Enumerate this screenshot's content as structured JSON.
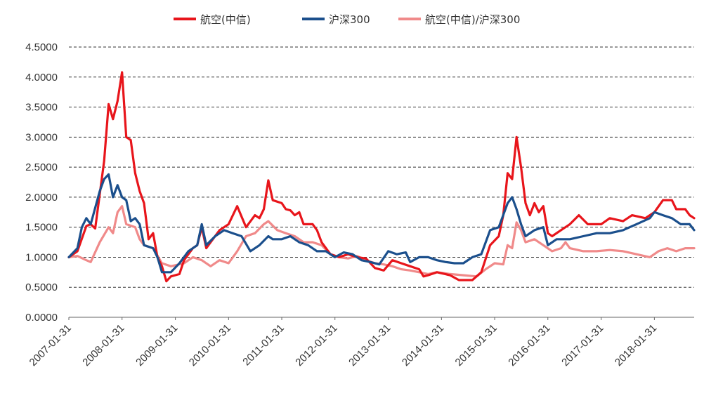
{
  "chart_data": {
    "type": "line",
    "title": "",
    "xlabel": "",
    "ylabel": "",
    "ylim": [
      0,
      4.5
    ],
    "y_ticks": [
      "0.0000",
      "0.5000",
      "1.0000",
      "1.5000",
      "2.0000",
      "2.5000",
      "3.0000",
      "3.5000",
      "4.0000",
      "4.5000"
    ],
    "x_tick_labels": [
      "2007-01-31",
      "2008-01-31",
      "2009-01-31",
      "2010-01-31",
      "2011-01-31",
      "2012-01-31",
      "2013-01-31",
      "2014-01-31",
      "2015-01-31",
      "2016-01-31",
      "2017-01-31",
      "2018-01-31"
    ],
    "x_start": "2007-01-31",
    "x_end": "2018-10-31",
    "grid": true,
    "legend_position": "top",
    "series": [
      {
        "name": "航空(中信)",
        "color": "#e8151b",
        "points": [
          [
            "2007-01-31",
            1.0
          ],
          [
            "2007-03-31",
            1.1
          ],
          [
            "2007-05-31",
            1.52
          ],
          [
            "2007-06-30",
            1.55
          ],
          [
            "2007-07-31",
            1.48
          ],
          [
            "2007-09-30",
            2.6
          ],
          [
            "2007-10-31",
            3.55
          ],
          [
            "2007-11-30",
            3.3
          ],
          [
            "2007-12-31",
            3.6
          ],
          [
            "2008-01-31",
            4.08
          ],
          [
            "2008-02-29",
            3.0
          ],
          [
            "2008-03-31",
            2.95
          ],
          [
            "2008-04-30",
            2.4
          ],
          [
            "2008-05-31",
            2.1
          ],
          [
            "2008-06-30",
            1.9
          ],
          [
            "2008-07-31",
            1.3
          ],
          [
            "2008-08-31",
            1.4
          ],
          [
            "2008-09-30",
            1.0
          ],
          [
            "2008-10-31",
            0.85
          ],
          [
            "2008-11-30",
            0.6
          ],
          [
            "2008-12-31",
            0.68
          ],
          [
            "2009-02-28",
            0.72
          ],
          [
            "2009-03-31",
            0.95
          ],
          [
            "2009-04-30",
            1.05
          ],
          [
            "2009-05-31",
            1.15
          ],
          [
            "2009-06-30",
            1.2
          ],
          [
            "2009-07-31",
            1.5
          ],
          [
            "2009-08-31",
            1.15
          ],
          [
            "2009-09-30",
            1.25
          ],
          [
            "2009-11-30",
            1.45
          ],
          [
            "2010-01-31",
            1.55
          ],
          [
            "2010-03-31",
            1.85
          ],
          [
            "2010-05-31",
            1.5
          ],
          [
            "2010-07-31",
            1.7
          ],
          [
            "2010-08-31",
            1.65
          ],
          [
            "2010-09-30",
            1.8
          ],
          [
            "2010-10-31",
            2.28
          ],
          [
            "2010-11-30",
            1.95
          ],
          [
            "2011-01-31",
            1.9
          ],
          [
            "2011-02-28",
            1.8
          ],
          [
            "2011-03-31",
            1.78
          ],
          [
            "2011-04-30",
            1.7
          ],
          [
            "2011-05-31",
            1.75
          ],
          [
            "2011-06-30",
            1.55
          ],
          [
            "2011-08-31",
            1.55
          ],
          [
            "2011-09-30",
            1.45
          ],
          [
            "2011-10-31",
            1.25
          ],
          [
            "2011-12-31",
            1.05
          ],
          [
            "2012-02-29",
            1.0
          ],
          [
            "2012-04-30",
            1.05
          ],
          [
            "2012-06-30",
            1.0
          ],
          [
            "2012-08-31",
            0.98
          ],
          [
            "2012-10-31",
            0.82
          ],
          [
            "2012-12-31",
            0.78
          ],
          [
            "2013-02-28",
            0.95
          ],
          [
            "2013-04-30",
            0.9
          ],
          [
            "2013-06-30",
            0.85
          ],
          [
            "2013-08-31",
            0.8
          ],
          [
            "2013-09-30",
            0.68
          ],
          [
            "2013-10-31",
            0.7
          ],
          [
            "2013-12-31",
            0.75
          ],
          [
            "2014-03-31",
            0.7
          ],
          [
            "2014-05-31",
            0.62
          ],
          [
            "2014-08-31",
            0.62
          ],
          [
            "2014-10-31",
            0.75
          ],
          [
            "2014-12-31",
            1.2
          ],
          [
            "2015-02-28",
            1.35
          ],
          [
            "2015-03-31",
            1.7
          ],
          [
            "2015-04-30",
            2.4
          ],
          [
            "2015-05-31",
            2.3
          ],
          [
            "2015-06-30",
            3.0
          ],
          [
            "2015-07-31",
            2.5
          ],
          [
            "2015-08-31",
            1.9
          ],
          [
            "2015-09-30",
            1.7
          ],
          [
            "2015-10-31",
            1.9
          ],
          [
            "2015-11-30",
            1.75
          ],
          [
            "2015-12-31",
            1.85
          ],
          [
            "2016-01-31",
            1.4
          ],
          [
            "2016-02-29",
            1.35
          ],
          [
            "2016-04-30",
            1.45
          ],
          [
            "2016-06-30",
            1.55
          ],
          [
            "2016-08-31",
            1.7
          ],
          [
            "2016-10-31",
            1.55
          ],
          [
            "2017-01-31",
            1.55
          ],
          [
            "2017-03-31",
            1.65
          ],
          [
            "2017-06-30",
            1.6
          ],
          [
            "2017-08-31",
            1.7
          ],
          [
            "2017-11-30",
            1.65
          ],
          [
            "2018-01-31",
            1.75
          ],
          [
            "2018-03-31",
            1.95
          ],
          [
            "2018-05-31",
            1.95
          ],
          [
            "2018-06-30",
            1.8
          ],
          [
            "2018-08-31",
            1.8
          ],
          [
            "2018-09-30",
            1.7
          ],
          [
            "2018-10-31",
            1.65
          ]
        ]
      },
      {
        "name": "沪深300",
        "color": "#1b4f8c",
        "points": [
          [
            "2007-01-31",
            1.0
          ],
          [
            "2007-03-31",
            1.15
          ],
          [
            "2007-04-30",
            1.5
          ],
          [
            "2007-05-31",
            1.65
          ],
          [
            "2007-06-30",
            1.55
          ],
          [
            "2007-08-31",
            2.1
          ],
          [
            "2007-09-30",
            2.3
          ],
          [
            "2007-10-31",
            2.38
          ],
          [
            "2007-11-30",
            2.0
          ],
          [
            "2007-12-31",
            2.2
          ],
          [
            "2008-01-31",
            2.0
          ],
          [
            "2008-02-29",
            1.95
          ],
          [
            "2008-03-31",
            1.6
          ],
          [
            "2008-04-30",
            1.65
          ],
          [
            "2008-05-31",
            1.55
          ],
          [
            "2008-06-30",
            1.2
          ],
          [
            "2008-08-31",
            1.15
          ],
          [
            "2008-09-30",
            1.0
          ],
          [
            "2008-10-31",
            0.75
          ],
          [
            "2008-12-31",
            0.75
          ],
          [
            "2009-02-28",
            0.9
          ],
          [
            "2009-04-30",
            1.1
          ],
          [
            "2009-06-30",
            1.2
          ],
          [
            "2009-07-31",
            1.55
          ],
          [
            "2009-08-31",
            1.2
          ],
          [
            "2009-10-31",
            1.35
          ],
          [
            "2009-12-31",
            1.45
          ],
          [
            "2010-02-28",
            1.4
          ],
          [
            "2010-04-30",
            1.35
          ],
          [
            "2010-06-30",
            1.1
          ],
          [
            "2010-08-31",
            1.2
          ],
          [
            "2010-10-31",
            1.35
          ],
          [
            "2010-11-30",
            1.3
          ],
          [
            "2011-01-31",
            1.3
          ],
          [
            "2011-03-31",
            1.35
          ],
          [
            "2011-05-31",
            1.25
          ],
          [
            "2011-07-31",
            1.2
          ],
          [
            "2011-09-30",
            1.1
          ],
          [
            "2011-11-30",
            1.1
          ],
          [
            "2012-01-31",
            1.0
          ],
          [
            "2012-03-31",
            1.08
          ],
          [
            "2012-05-31",
            1.05
          ],
          [
            "2012-07-31",
            0.95
          ],
          [
            "2012-09-30",
            0.92
          ],
          [
            "2012-11-30",
            0.88
          ],
          [
            "2013-01-31",
            1.1
          ],
          [
            "2013-03-31",
            1.05
          ],
          [
            "2013-05-31",
            1.08
          ],
          [
            "2013-06-30",
            0.92
          ],
          [
            "2013-08-31",
            1.0
          ],
          [
            "2013-10-31",
            1.0
          ],
          [
            "2013-12-31",
            0.95
          ],
          [
            "2014-02-28",
            0.92
          ],
          [
            "2014-04-30",
            0.9
          ],
          [
            "2014-06-30",
            0.9
          ],
          [
            "2014-08-31",
            1.0
          ],
          [
            "2014-10-31",
            1.05
          ],
          [
            "2014-12-31",
            1.45
          ],
          [
            "2015-02-28",
            1.5
          ],
          [
            "2015-04-30",
            1.9
          ],
          [
            "2015-05-31",
            2.0
          ],
          [
            "2015-06-30",
            1.8
          ],
          [
            "2015-07-31",
            1.55
          ],
          [
            "2015-08-31",
            1.35
          ],
          [
            "2015-10-31",
            1.45
          ],
          [
            "2015-12-31",
            1.5
          ],
          [
            "2016-01-31",
            1.2
          ],
          [
            "2016-03-31",
            1.3
          ],
          [
            "2016-06-30",
            1.3
          ],
          [
            "2016-09-30",
            1.35
          ],
          [
            "2016-12-31",
            1.4
          ],
          [
            "2017-03-31",
            1.4
          ],
          [
            "2017-06-30",
            1.45
          ],
          [
            "2017-09-30",
            1.55
          ],
          [
            "2017-12-31",
            1.65
          ],
          [
            "2018-01-31",
            1.75
          ],
          [
            "2018-03-31",
            1.7
          ],
          [
            "2018-05-31",
            1.65
          ],
          [
            "2018-07-31",
            1.55
          ],
          [
            "2018-09-30",
            1.55
          ],
          [
            "2018-10-31",
            1.45
          ]
        ]
      },
      {
        "name": "航空(中信)/沪深300",
        "color": "#f08a8a",
        "points": [
          [
            "2007-01-31",
            1.0
          ],
          [
            "2007-03-31",
            1.02
          ],
          [
            "2007-05-31",
            0.95
          ],
          [
            "2007-06-30",
            0.92
          ],
          [
            "2007-08-31",
            1.25
          ],
          [
            "2007-10-31",
            1.5
          ],
          [
            "2007-11-30",
            1.4
          ],
          [
            "2007-12-31",
            1.75
          ],
          [
            "2008-01-31",
            1.85
          ],
          [
            "2008-02-29",
            1.55
          ],
          [
            "2008-04-30",
            1.5
          ],
          [
            "2008-05-31",
            1.3
          ],
          [
            "2008-06-30",
            1.2
          ],
          [
            "2008-08-31",
            1.15
          ],
          [
            "2008-10-31",
            0.9
          ],
          [
            "2008-12-31",
            0.85
          ],
          [
            "2009-03-31",
            0.9
          ],
          [
            "2009-05-31",
            1.0
          ],
          [
            "2009-07-31",
            0.95
          ],
          [
            "2009-09-30",
            0.85
          ],
          [
            "2009-11-30",
            0.95
          ],
          [
            "2010-01-31",
            0.9
          ],
          [
            "2010-03-31",
            1.1
          ],
          [
            "2010-05-31",
            1.35
          ],
          [
            "2010-07-31",
            1.4
          ],
          [
            "2010-09-30",
            1.55
          ],
          [
            "2010-10-31",
            1.6
          ],
          [
            "2010-12-31",
            1.45
          ],
          [
            "2011-02-28",
            1.4
          ],
          [
            "2011-04-30",
            1.35
          ],
          [
            "2011-06-30",
            1.25
          ],
          [
            "2011-08-31",
            1.25
          ],
          [
            "2011-10-31",
            1.2
          ],
          [
            "2011-12-31",
            1.05
          ],
          [
            "2012-02-29",
            1.0
          ],
          [
            "2012-04-30",
            0.98
          ],
          [
            "2012-06-30",
            1.02
          ],
          [
            "2012-08-31",
            0.95
          ],
          [
            "2012-10-31",
            0.9
          ],
          [
            "2012-12-31",
            0.88
          ],
          [
            "2013-02-28",
            0.85
          ],
          [
            "2013-04-30",
            0.8
          ],
          [
            "2013-06-30",
            0.78
          ],
          [
            "2013-08-31",
            0.75
          ],
          [
            "2013-10-31",
            0.72
          ],
          [
            "2013-12-31",
            0.75
          ],
          [
            "2014-03-31",
            0.72
          ],
          [
            "2014-06-30",
            0.7
          ],
          [
            "2014-09-30",
            0.68
          ],
          [
            "2014-11-30",
            0.8
          ],
          [
            "2015-01-31",
            0.9
          ],
          [
            "2015-03-31",
            0.88
          ],
          [
            "2015-04-30",
            1.2
          ],
          [
            "2015-05-31",
            1.15
          ],
          [
            "2015-06-30",
            1.58
          ],
          [
            "2015-07-31",
            1.45
          ],
          [
            "2015-08-31",
            1.25
          ],
          [
            "2015-10-31",
            1.3
          ],
          [
            "2015-12-31",
            1.2
          ],
          [
            "2016-02-29",
            1.1
          ],
          [
            "2016-04-30",
            1.15
          ],
          [
            "2016-05-31",
            1.25
          ],
          [
            "2016-06-30",
            1.15
          ],
          [
            "2016-09-30",
            1.1
          ],
          [
            "2016-12-31",
            1.1
          ],
          [
            "2017-03-31",
            1.12
          ],
          [
            "2017-06-30",
            1.1
          ],
          [
            "2017-09-30",
            1.05
          ],
          [
            "2017-12-31",
            1.0
          ],
          [
            "2018-02-28",
            1.1
          ],
          [
            "2018-04-30",
            1.15
          ],
          [
            "2018-06-30",
            1.1
          ],
          [
            "2018-08-31",
            1.15
          ],
          [
            "2018-10-31",
            1.15
          ]
        ]
      }
    ]
  }
}
